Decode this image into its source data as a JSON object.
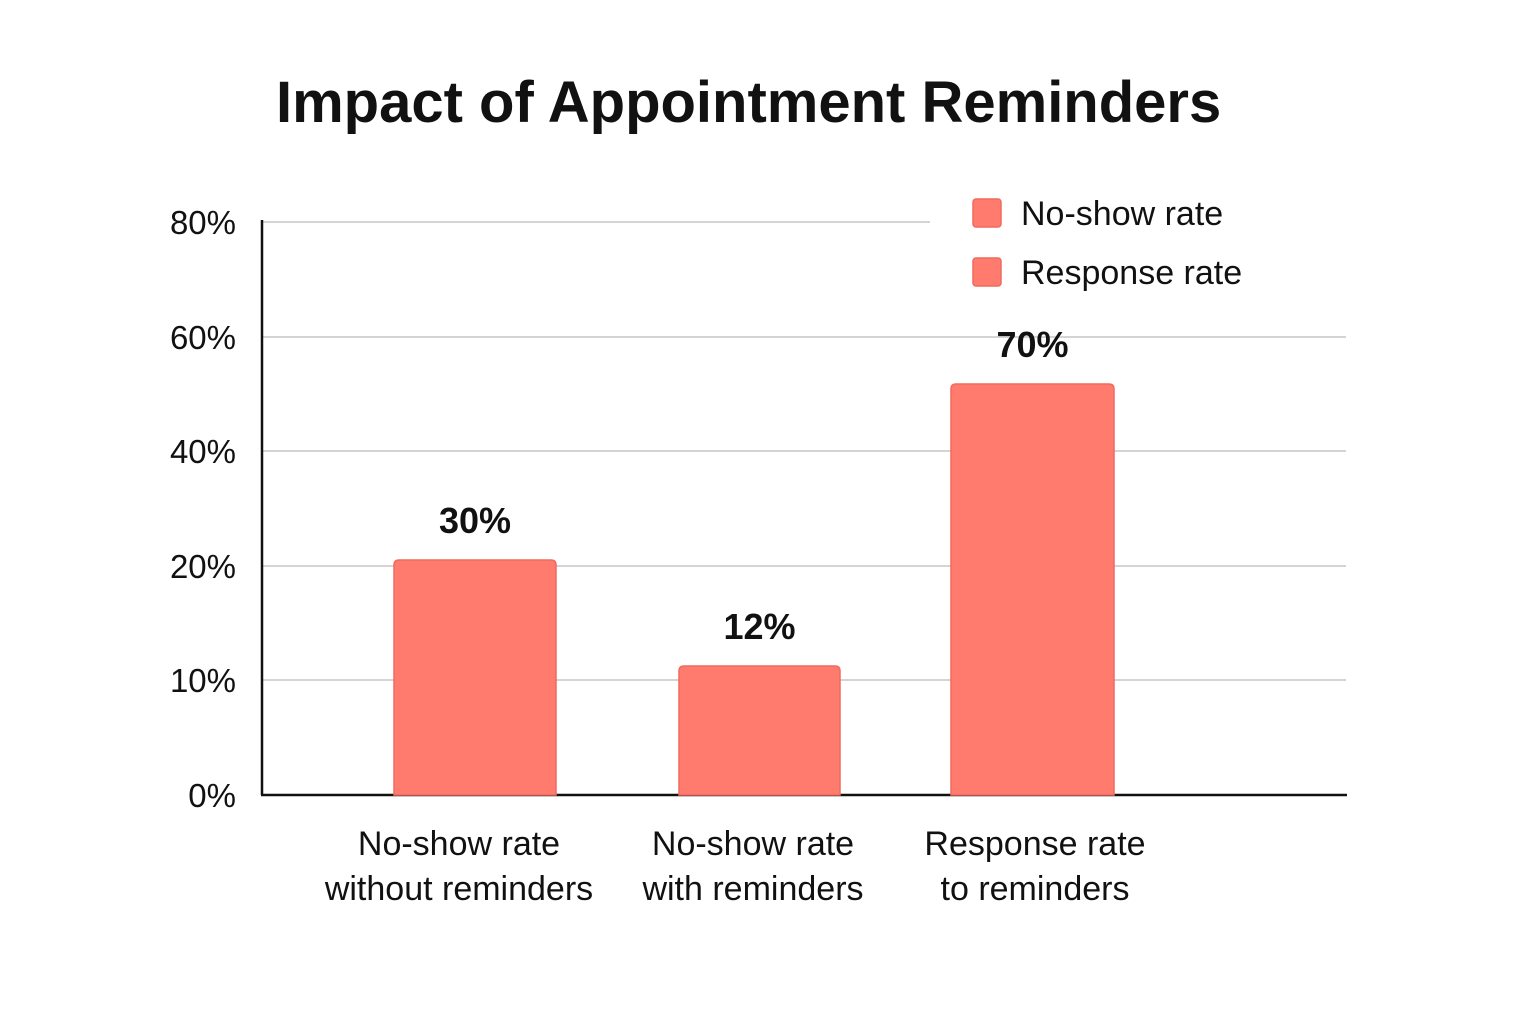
{
  "chart_data": {
    "type": "bar",
    "title": "Impact of Appointment Reminders",
    "xlabel": "",
    "ylabel": "",
    "categories": [
      [
        "No-show rate",
        "without reminders"
      ],
      [
        "No-show rate",
        "with reminders"
      ],
      [
        "Response rate",
        "to reminders"
      ]
    ],
    "values": [
      30,
      12,
      70
    ],
    "data_labels": [
      "30%",
      "12%",
      "70%"
    ],
    "y_tick_labels": [
      "0%",
      "10%",
      "20%",
      "40%",
      "60%",
      "80%"
    ],
    "legend": {
      "placement": "top-right",
      "entries": [
        "No-show rate",
        "Response rate"
      ]
    },
    "grid": true,
    "bar_color": "#FF7B6E",
    "bar_edge_color": "#F06A5E"
  }
}
